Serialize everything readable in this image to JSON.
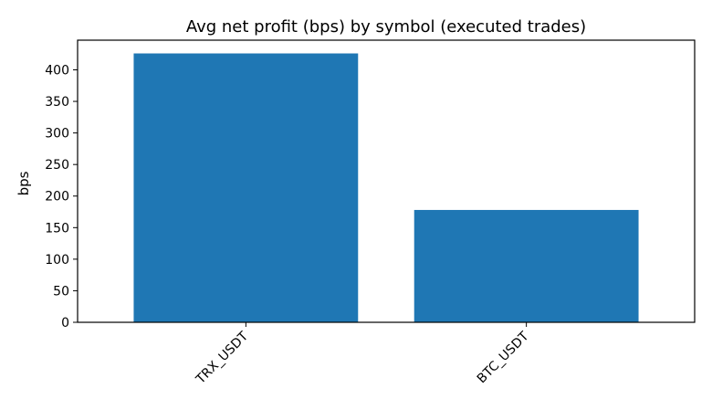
{
  "chart_data": {
    "type": "bar",
    "title": "Avg net profit (bps) by symbol (executed trades)",
    "xlabel": "",
    "ylabel": "bps",
    "categories": [
      "TRX_USDT",
      "BTC_USDT"
    ],
    "values": [
      426,
      178
    ],
    "ylim": [
      0,
      447
    ],
    "yticks": [
      0,
      50,
      100,
      150,
      200,
      250,
      300,
      350,
      400
    ],
    "grid": false,
    "legend": "none",
    "bar_color": "#1f77b4"
  }
}
